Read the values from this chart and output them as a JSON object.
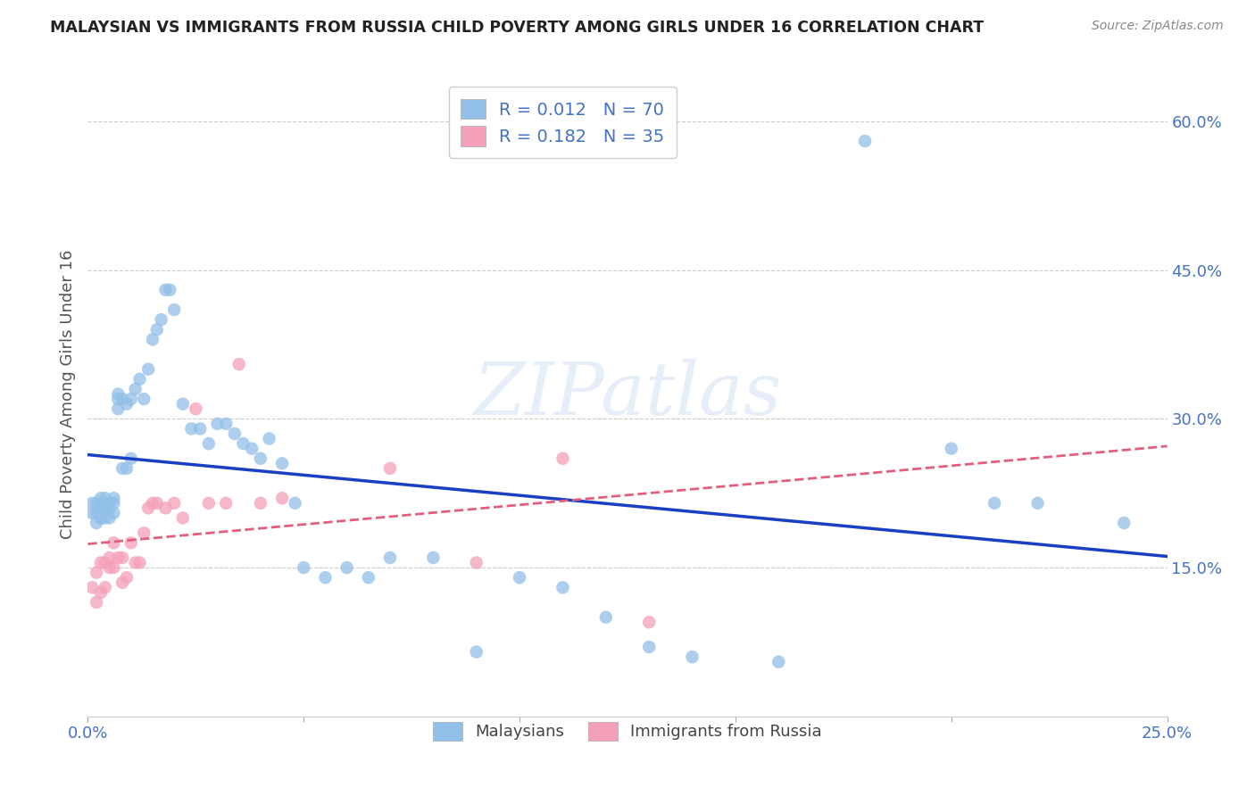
{
  "title": "MALAYSIAN VS IMMIGRANTS FROM RUSSIA CHILD POVERTY AMONG GIRLS UNDER 16 CORRELATION CHART",
  "source": "Source: ZipAtlas.com",
  "ylabel": "Child Poverty Among Girls Under 16",
  "watermark": "ZIPatlas",
  "malaysian_R": "0.012",
  "malaysian_N": "70",
  "russia_R": "0.182",
  "russia_N": "35",
  "xlim": [
    0.0,
    0.25
  ],
  "ylim": [
    0.0,
    0.65
  ],
  "yticks": [
    0.15,
    0.3,
    0.45,
    0.6
  ],
  "ytick_labels": [
    "15.0%",
    "30.0%",
    "45.0%",
    "60.0%"
  ],
  "color_malaysian": "#92C0E8",
  "color_russia": "#F4A0B8",
  "color_line_malaysian": "#1a3fc4",
  "color_line_russia": "#e06080",
  "background": "#ffffff",
  "malaysian_x": [
    0.001,
    0.001,
    0.002,
    0.002,
    0.002,
    0.003,
    0.003,
    0.003,
    0.003,
    0.003,
    0.004,
    0.004,
    0.004,
    0.004,
    0.005,
    0.005,
    0.005,
    0.006,
    0.006,
    0.006,
    0.007,
    0.007,
    0.007,
    0.008,
    0.008,
    0.009,
    0.009,
    0.01,
    0.01,
    0.011,
    0.012,
    0.013,
    0.014,
    0.015,
    0.016,
    0.017,
    0.018,
    0.019,
    0.02,
    0.022,
    0.024,
    0.026,
    0.028,
    0.03,
    0.032,
    0.034,
    0.036,
    0.038,
    0.04,
    0.042,
    0.045,
    0.048,
    0.05,
    0.055,
    0.06,
    0.065,
    0.07,
    0.08,
    0.09,
    0.1,
    0.11,
    0.12,
    0.13,
    0.14,
    0.16,
    0.18,
    0.2,
    0.21,
    0.22,
    0.24
  ],
  "malaysian_y": [
    0.205,
    0.215,
    0.195,
    0.205,
    0.215,
    0.2,
    0.205,
    0.21,
    0.22,
    0.2,
    0.2,
    0.21,
    0.22,
    0.215,
    0.2,
    0.21,
    0.215,
    0.205,
    0.215,
    0.22,
    0.31,
    0.32,
    0.325,
    0.25,
    0.32,
    0.25,
    0.315,
    0.32,
    0.26,
    0.33,
    0.34,
    0.32,
    0.35,
    0.38,
    0.39,
    0.4,
    0.43,
    0.43,
    0.41,
    0.315,
    0.29,
    0.29,
    0.275,
    0.295,
    0.295,
    0.285,
    0.275,
    0.27,
    0.26,
    0.28,
    0.255,
    0.215,
    0.15,
    0.14,
    0.15,
    0.14,
    0.16,
    0.16,
    0.065,
    0.14,
    0.13,
    0.1,
    0.07,
    0.06,
    0.055,
    0.58,
    0.27,
    0.215,
    0.215,
    0.195
  ],
  "russia_x": [
    0.001,
    0.002,
    0.002,
    0.003,
    0.003,
    0.004,
    0.004,
    0.005,
    0.005,
    0.006,
    0.006,
    0.007,
    0.008,
    0.008,
    0.009,
    0.01,
    0.011,
    0.012,
    0.013,
    0.014,
    0.015,
    0.016,
    0.018,
    0.02,
    0.022,
    0.025,
    0.028,
    0.032,
    0.035,
    0.04,
    0.045,
    0.07,
    0.09,
    0.11,
    0.13
  ],
  "russia_y": [
    0.13,
    0.115,
    0.145,
    0.125,
    0.155,
    0.13,
    0.155,
    0.15,
    0.16,
    0.15,
    0.175,
    0.16,
    0.135,
    0.16,
    0.14,
    0.175,
    0.155,
    0.155,
    0.185,
    0.21,
    0.215,
    0.215,
    0.21,
    0.215,
    0.2,
    0.31,
    0.215,
    0.215,
    0.355,
    0.215,
    0.22,
    0.25,
    0.155,
    0.26,
    0.095
  ]
}
